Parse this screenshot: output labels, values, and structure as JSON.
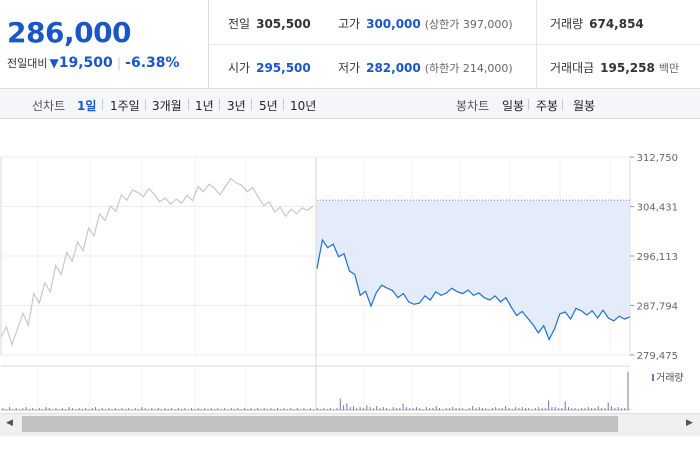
{
  "price": {
    "current": "286,000",
    "change_label": "전일대비",
    "change_arrow": "▼",
    "change_value": "19,500",
    "change_rate": "-6.38%"
  },
  "stats": {
    "row1": [
      {
        "label": "전일",
        "value": "305,500",
        "sub": ""
      },
      {
        "label": "고가",
        "value": "300,000",
        "sub": "(상한가 397,000)"
      },
      {
        "label": "거래량",
        "value": "674,854",
        "sub": ""
      }
    ],
    "row2": [
      {
        "label": "시가",
        "value": "295,500",
        "sub": ""
      },
      {
        "label": "저가",
        "value": "282,000",
        "sub": "(하한가 214,000)"
      },
      {
        "label": "거래대금",
        "value": "195,258",
        "sub": "백만"
      }
    ]
  },
  "tabs": {
    "line_title": "선차트",
    "line_tabs": [
      "1일",
      "1주일",
      "3개월",
      "1년",
      "3년",
      "5년",
      "10년"
    ],
    "active": "1일",
    "candle_title": "봉차트",
    "candle_tabs": [
      "일봉",
      "주봉",
      "월봉"
    ]
  },
  "colors": {
    "accent": "#1a56c8",
    "prev_day_line": "#c8c8c8",
    "today_line": "#1f6fd1",
    "fill": "#e4ecfa",
    "volume": "#8a6aa8"
  },
  "chart_data": {
    "type": "line",
    "y_ticks": [
      "312,750",
      "304,431",
      "296,113",
      "287,794",
      "279,475"
    ],
    "ylim": [
      279475,
      312750
    ],
    "reference_value": 305500,
    "volume_label": "거래량",
    "grid": true,
    "series": [
      {
        "values": [
          282500,
          284200,
          281200,
          283800,
          286500,
          284500,
          289800,
          288200,
          291600,
          290100,
          294500,
          293000,
          296700,
          295200,
          298500,
          297000,
          300800,
          299500,
          303200,
          302100,
          304500,
          303600,
          306400,
          305500,
          307200,
          306800,
          306100,
          307400,
          306500,
          305200,
          305900,
          304800,
          305700,
          305000,
          306300,
          305400,
          307800,
          306900,
          308200,
          307500,
          306400,
          307800,
          309100,
          308400,
          308000,
          306900,
          307600,
          306000,
          304600,
          305200,
          303500,
          304300,
          302800,
          304000,
          303200,
          304200,
          303800,
          304500
        ]
      },
      {
        "values": [
          294000,
          298800,
          297500,
          298100,
          296000,
          296500,
          293600,
          293000,
          289500,
          290200,
          287700,
          290000,
          291200,
          290700,
          290300,
          289100,
          289800,
          288400,
          288000,
          288200,
          289400,
          288700,
          290100,
          289500,
          289900,
          290700,
          290100,
          289800,
          290400,
          289500,
          289900,
          289100,
          288700,
          289400,
          288400,
          289100,
          287500,
          286100,
          286800,
          285700,
          284600,
          283200,
          284400,
          282100,
          283800,
          286400,
          286700,
          285500,
          287300,
          286900,
          286200,
          286900,
          285700,
          287000,
          285700,
          285200,
          286000,
          285500,
          285900
        ]
      }
    ],
    "volume": [
      2,
      1,
      3,
      1,
      2,
      1,
      2,
      3,
      1,
      2,
      1,
      2,
      1,
      3,
      2,
      1,
      2,
      1,
      2,
      1,
      3,
      2,
      1,
      2,
      1,
      2,
      1,
      2,
      3,
      1,
      2,
      1,
      2,
      1,
      2,
      1,
      2,
      1,
      2,
      1,
      2,
      1,
      3,
      2,
      1,
      2,
      1,
      2,
      1,
      2,
      1,
      2,
      1,
      2,
      1,
      2,
      1,
      2,
      1,
      2,
      1,
      2,
      1,
      2,
      1,
      2,
      1,
      2,
      1,
      2,
      1,
      2,
      1,
      2,
      1,
      2,
      1,
      2,
      1,
      2,
      1,
      2,
      1,
      2,
      1,
      2,
      1,
      2,
      1,
      2,
      1,
      2,
      1,
      2,
      1,
      2,
      1,
      2,
      1,
      2,
      1,
      2,
      12,
      5,
      7,
      3,
      4,
      2,
      3,
      2,
      5,
      3,
      2,
      4,
      2,
      3,
      2,
      1,
      3,
      2,
      2,
      7,
      3,
      2,
      2,
      3,
      2,
      1,
      3,
      2,
      2,
      4,
      2,
      1,
      2,
      2,
      3,
      2,
      2,
      2,
      1,
      2,
      4,
      2,
      3,
      2,
      2,
      1,
      2,
      3,
      2,
      2,
      4,
      2,
      1,
      3,
      2,
      3,
      2,
      2,
      1,
      2,
      3,
      2,
      2,
      10,
      3,
      3,
      2,
      2,
      9,
      3,
      2,
      2,
      1,
      2,
      2,
      3,
      2,
      2,
      4,
      2,
      2,
      8,
      4,
      2,
      3,
      2,
      2,
      40
    ]
  },
  "scrollbar": {
    "left_arrow": "◀",
    "right_arrow": "▶"
  }
}
